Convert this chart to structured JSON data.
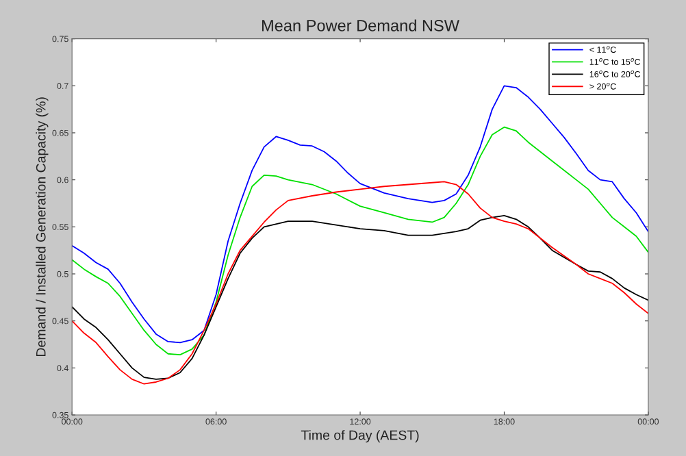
{
  "chart_data": {
    "type": "line",
    "title": "Mean Power Demand NSW",
    "xlabel": "Time of Day (AEST)",
    "ylabel": "Demand / Installed Generation Capacity (%)",
    "xlim": [
      0,
      24
    ],
    "xticks": [
      {
        "value": 0,
        "label": "00:00"
      },
      {
        "value": 6,
        "label": "06:00"
      },
      {
        "value": 12,
        "label": "12:00"
      },
      {
        "value": 18,
        "label": "18:00"
      },
      {
        "value": 24,
        "label": "00:00"
      }
    ],
    "ylim": [
      0.35,
      0.75
    ],
    "yticks": [
      0.35,
      0.4,
      0.45,
      0.5,
      0.55,
      0.6,
      0.65,
      0.7,
      0.75
    ],
    "grid": false,
    "legend": "top right",
    "marker": "none",
    "line_style": "solid",
    "series": [
      {
        "name": "< 11$^{o}$C",
        "color": "#0000ff",
        "x": [
          0,
          0.5,
          1,
          1.5,
          2,
          2.5,
          3,
          3.5,
          4,
          4.5,
          5,
          5.5,
          6,
          6.5,
          7,
          7.5,
          8,
          8.5,
          9,
          9.5,
          10,
          10.5,
          11,
          11.5,
          12,
          13,
          14,
          15,
          15.5,
          16,
          16.5,
          17,
          17.5,
          18,
          18.5,
          19,
          19.5,
          20,
          20.5,
          21,
          21.5,
          22,
          22.5,
          23,
          23.5,
          24
        ],
        "values": [
          0.53,
          0.522,
          0.512,
          0.505,
          0.49,
          0.47,
          0.452,
          0.436,
          0.428,
          0.427,
          0.43,
          0.44,
          0.478,
          0.535,
          0.575,
          0.61,
          0.635,
          0.646,
          0.642,
          0.637,
          0.636,
          0.63,
          0.62,
          0.607,
          0.596,
          0.586,
          0.58,
          0.576,
          0.578,
          0.585,
          0.605,
          0.635,
          0.675,
          0.7,
          0.698,
          0.688,
          0.675,
          0.66,
          0.645,
          0.628,
          0.61,
          0.6,
          0.598,
          0.58,
          0.565,
          0.545
        ]
      },
      {
        "name": "11$^{o}$C to 15$^{o}$C",
        "color": "#00e000",
        "x": [
          0,
          0.5,
          1,
          1.5,
          2,
          2.5,
          3,
          3.5,
          4,
          4.5,
          5,
          5.5,
          6,
          6.5,
          7,
          7.5,
          8,
          8.5,
          9,
          10,
          11,
          12,
          13,
          14,
          15,
          15.5,
          16,
          16.5,
          17,
          17.5,
          18,
          18.5,
          19,
          20,
          21,
          21.5,
          22,
          22.5,
          23,
          23.5,
          24
        ],
        "values": [
          0.515,
          0.505,
          0.497,
          0.49,
          0.476,
          0.458,
          0.44,
          0.425,
          0.415,
          0.414,
          0.42,
          0.435,
          0.47,
          0.52,
          0.56,
          0.593,
          0.605,
          0.604,
          0.6,
          0.595,
          0.585,
          0.572,
          0.565,
          0.558,
          0.555,
          0.56,
          0.575,
          0.595,
          0.625,
          0.648,
          0.656,
          0.652,
          0.64,
          0.62,
          0.6,
          0.59,
          0.575,
          0.56,
          0.55,
          0.54,
          0.523
        ]
      },
      {
        "name": "16$^{o}$C to 20$^{o}$C",
        "color": "#000000",
        "x": [
          0,
          0.5,
          1,
          1.5,
          2,
          2.5,
          3,
          3.5,
          4,
          4.5,
          5,
          5.5,
          6,
          6.5,
          7,
          7.5,
          8,
          9,
          10,
          11,
          12,
          13,
          14,
          15,
          16,
          16.5,
          17,
          17.5,
          18,
          18.5,
          19,
          19.5,
          20,
          21,
          21.5,
          22,
          22.5,
          23,
          23.5,
          24
        ],
        "values": [
          0.465,
          0.452,
          0.443,
          0.43,
          0.415,
          0.4,
          0.39,
          0.388,
          0.389,
          0.395,
          0.41,
          0.435,
          0.465,
          0.495,
          0.522,
          0.538,
          0.55,
          0.556,
          0.556,
          0.552,
          0.548,
          0.546,
          0.541,
          0.541,
          0.545,
          0.548,
          0.557,
          0.56,
          0.562,
          0.558,
          0.55,
          0.538,
          0.525,
          0.51,
          0.503,
          0.502,
          0.495,
          0.485,
          0.478,
          0.472
        ]
      },
      {
        "name": "> 20$^{o}$C",
        "color": "#ff0000",
        "x": [
          0,
          0.5,
          1,
          1.5,
          2,
          2.5,
          3,
          3.5,
          4,
          4.5,
          5,
          5.5,
          6,
          6.5,
          7,
          7.5,
          8,
          8.5,
          9,
          10,
          11,
          12,
          13,
          14,
          15,
          15.5,
          16,
          16.5,
          17,
          17.5,
          18,
          18.5,
          19,
          20,
          21,
          21.5,
          22,
          22.5,
          23,
          23.5,
          24
        ],
        "values": [
          0.45,
          0.437,
          0.427,
          0.412,
          0.398,
          0.388,
          0.383,
          0.385,
          0.389,
          0.398,
          0.415,
          0.44,
          0.468,
          0.5,
          0.525,
          0.54,
          0.555,
          0.568,
          0.578,
          0.583,
          0.587,
          0.59,
          0.593,
          0.595,
          0.597,
          0.598,
          0.595,
          0.585,
          0.57,
          0.56,
          0.556,
          0.553,
          0.548,
          0.528,
          0.51,
          0.5,
          0.495,
          0.49,
          0.48,
          0.468,
          0.458
        ]
      }
    ]
  }
}
